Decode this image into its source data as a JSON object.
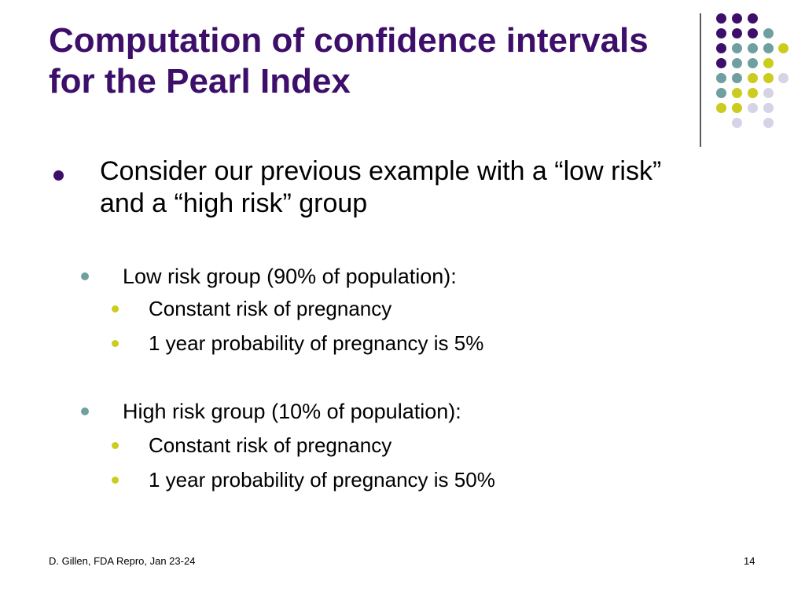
{
  "slide": {
    "title": "Computation of confidence intervals for the Pearl Index",
    "bullets": [
      {
        "text": "Consider our previous example with a “low risk” and a “high risk” group"
      }
    ],
    "groups": [
      {
        "label": "Low risk group (90% of population):",
        "items": [
          "Constant risk of pregnancy",
          "1 year probability of pregnancy is 5%"
        ]
      },
      {
        "label": "High risk group (10% of population):",
        "items": [
          "Constant risk of pregnancy",
          "1 year probability of pregnancy is 50%"
        ]
      }
    ]
  },
  "footer": {
    "left": "D. Gillen, FDA Repro, Jan 23-24",
    "page_number": "14"
  },
  "colors": {
    "title": "#3d0f6a",
    "purple": "#3d0f6a",
    "teal": "#6f9fa0",
    "yellow": "#cccc1f",
    "lavender": "#d4d4e6"
  }
}
